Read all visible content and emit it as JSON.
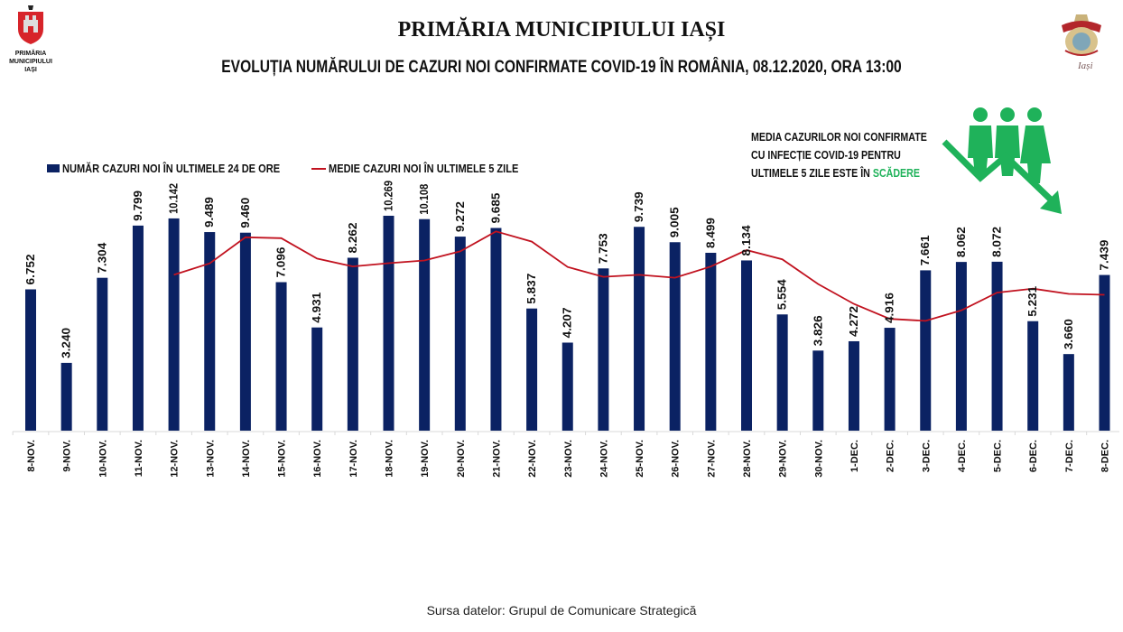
{
  "header": {
    "logo_left_text": [
      "PRIMĂRIA",
      "MUNICIPIULUI",
      "IAȘI"
    ],
    "logo_right_text": "Iași",
    "title": "PRIMĂRIA MUNICIPIULUI IAȘI",
    "subtitle": "EVOLUȚIA NUMĂRULUI DE CAZURI NOI CONFIRMATE COVID-19 ÎN ROMÂNIA, 08.12.2020, ORA 13:00"
  },
  "note": {
    "line1": "MEDIA CAZURILOR NOI CONFIRMATE",
    "line2": "CU INFECȚIE COVID-19 PENTRU",
    "line3_prefix": "ULTIMELE 5 ZILE ESTE ÎN ",
    "line3_highlight": "SCĂDERE",
    "icon": "people-trend-down-icon"
  },
  "colors": {
    "bar": "#0b2263",
    "line": "#c1121f",
    "highlight": "#1fb25a"
  },
  "source": "Sursa datelor: Grupul de  Comunicare Strategică",
  "chart_data": {
    "type": "bar",
    "title": "EVOLUȚIA NUMĂRULUI DE CAZURI NOI CONFIRMATE COVID-19 ÎN ROMÂNIA, 08.12.2020, ORA 13:00",
    "xlabel": "",
    "ylabel": "",
    "ylim": [
      0,
      10500
    ],
    "grid": false,
    "legend_position": "top-left",
    "categories": [
      "8-NOV.",
      "9-NOV.",
      "10-NOV.",
      "11-NOV.",
      "12-NOV.",
      "13-NOV.",
      "14-NOV.",
      "15-NOV.",
      "16-NOV.",
      "17-NOV.",
      "18-NOV.",
      "19-NOV.",
      "20-NOV.",
      "21-NOV.",
      "22-NOV.",
      "23-NOV.",
      "24-NOV.",
      "25-NOV.",
      "26-NOV.",
      "27-NOV.",
      "28-NOV.",
      "29-NOV.",
      "30-NOV.",
      "1-DEC.",
      "2-DEC.",
      "3-DEC.",
      "4-DEC.",
      "5-DEC.",
      "6-DEC.",
      "7-DEC.",
      "8-DEC."
    ],
    "series": [
      {
        "name": "NUMĂR CAZURI NOI ÎN ULTIMELE 24 DE ORE",
        "type": "bar",
        "values": [
          6752,
          3240,
          7304,
          9799,
          10142,
          9489,
          9460,
          7096,
          4931,
          8262,
          10269,
          10108,
          9272,
          9685,
          5837,
          4207,
          7753,
          9739,
          9005,
          8499,
          8134,
          5554,
          3826,
          4272,
          4916,
          7661,
          8062,
          8072,
          5231,
          3660,
          7439
        ],
        "labels": [
          "6.752",
          "3.240",
          "7.304",
          "9.799",
          "10.142",
          "9.489",
          "9.460",
          "7.096",
          "4.931",
          "8.262",
          "10.269",
          "10.108",
          "9.272",
          "9.685",
          "5.837",
          "4.207",
          "7.753",
          "9.739",
          "9.005",
          "8.499",
          "8.134",
          "5.554",
          "3.826",
          "4.272",
          "4.916",
          "7.661",
          "8.062",
          "8.072",
          "5.231",
          "3.660",
          "7.439"
        ]
      },
      {
        "name": "MEDIE CAZURI NOI ÎN ULTIMELE 5 ZILE",
        "type": "line",
        "values": [
          null,
          null,
          null,
          null,
          7447,
          7995,
          9239,
          9197,
          8224,
          7848,
          8004,
          8133,
          8568,
          9519,
          9034,
          7822,
          7351,
          7444,
          7308,
          7841,
          8626,
          8186,
          7004,
          6057,
          5340,
          5246,
          5747,
          6597,
          6788,
          6537,
          6493
        ]
      }
    ]
  }
}
